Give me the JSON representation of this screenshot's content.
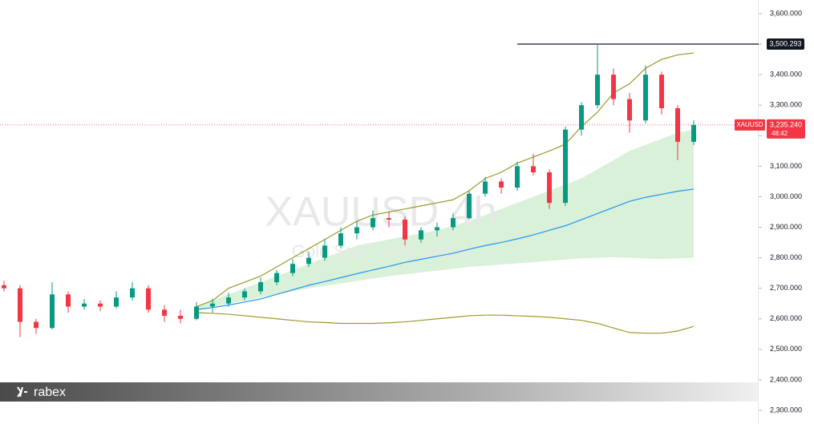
{
  "chart_data": {
    "type": "candlestick",
    "watermark_title": "XAUUSD 4h",
    "watermark_subtitle": "Gold Spot / U.S. Dollar",
    "brand": "rabex",
    "symbol": "XAUUSD",
    "countdown": "48:42",
    "categories": [
      null,
      null,
      null,
      null,
      null,
      null,
      null,
      null,
      null,
      null,
      null,
      null,
      null,
      null,
      null,
      null,
      null,
      null,
      null,
      null,
      null,
      null,
      null,
      null,
      null,
      null,
      null,
      null,
      null,
      null,
      null,
      null,
      null,
      null,
      null,
      null,
      null,
      null,
      null,
      null,
      null,
      null,
      null,
      null
    ],
    "open": [
      2710,
      2700,
      2590,
      2570,
      2680,
      2640,
      2650,
      2640,
      2670,
      2700,
      2630,
      2610,
      2600,
      2640,
      2650,
      2670,
      2690,
      2720,
      2750,
      2780,
      2800,
      2840,
      2880,
      2900,
      2930,
      2925,
      2860,
      2890,
      2900,
      2930,
      3010,
      3050,
      3030,
      3100,
      3080,
      2980,
      3220,
      3300,
      3400,
      3320,
      3250,
      3400,
      3290,
      3180
    ],
    "high": [
      2725,
      2710,
      2600,
      2720,
      2690,
      2665,
      2660,
      2690,
      2720,
      2710,
      2645,
      2630,
      2655,
      2665,
      2685,
      2700,
      2735,
      2760,
      2795,
      2820,
      2860,
      2900,
      2920,
      2955,
      2950,
      2935,
      2900,
      2915,
      2945,
      3020,
      3065,
      3060,
      3115,
      3140,
      3090,
      3230,
      3310,
      3500.293,
      3420,
      3340,
      3430,
      3410,
      3300,
      3250
    ],
    "low": [
      2690,
      2540,
      2550,
      2565,
      2620,
      2630,
      2625,
      2635,
      2660,
      2620,
      2590,
      2585,
      2595,
      2620,
      2640,
      2660,
      2680,
      2710,
      2740,
      2770,
      2790,
      2830,
      2860,
      2890,
      2900,
      2840,
      2850,
      2870,
      2890,
      2925,
      3000,
      3010,
      3020,
      3070,
      2960,
      2970,
      3200,
      3290,
      3300,
      3210,
      3240,
      3270,
      3120,
      3170
    ],
    "close": [
      2700,
      2590,
      2570,
      2680,
      2640,
      2650,
      2640,
      2670,
      2700,
      2630,
      2610,
      2600,
      2640,
      2650,
      2670,
      2690,
      2720,
      2750,
      2780,
      2800,
      2840,
      2880,
      2900,
      2930,
      2925,
      2860,
      2890,
      2900,
      2930,
      3010,
      3050,
      3030,
      3100,
      3080,
      2980,
      3220,
      3300,
      3400,
      3320,
      3250,
      3400,
      3290,
      3180,
      3235.24
    ],
    "up_color": "#089981",
    "down_color": "#f23645",
    "series": [
      {
        "color": "#9a9a2a",
        "values": [
          null,
          null,
          null,
          null,
          null,
          null,
          null,
          null,
          null,
          null,
          null,
          null,
          2640,
          2660,
          2700,
          2720,
          2740,
          2770,
          2800,
          2830,
          2860,
          2890,
          2920,
          2940,
          2950,
          2960,
          2970,
          2980,
          2990,
          3020,
          3060,
          3080,
          3110,
          3130,
          3150,
          3172,
          3230,
          3277,
          3340,
          3370,
          3421,
          3450,
          3465,
          3471
        ]
      },
      {
        "color": "#9a9a2a",
        "values": [
          null,
          null,
          null,
          null,
          null,
          null,
          null,
          null,
          null,
          null,
          null,
          null,
          2620,
          2618,
          2615,
          2610,
          2605,
          2600,
          2595,
          2590,
          2588,
          2585,
          2585,
          2585,
          2587,
          2590,
          2595,
          2600,
          2605,
          2610,
          2612,
          2612,
          2610,
          2608,
          2605,
          2600,
          2595,
          2585,
          2570,
          2555,
          2553,
          2553,
          2560,
          2575
        ]
      },
      {
        "color": "#2196f3",
        "values": [
          null,
          null,
          null,
          null,
          null,
          null,
          null,
          null,
          null,
          null,
          null,
          null,
          2630,
          2637,
          2645,
          2655,
          2665,
          2680,
          2695,
          2710,
          2722,
          2735,
          2748,
          2760,
          2772,
          2785,
          2795,
          2805,
          2815,
          2828,
          2840,
          2850,
          2862,
          2875,
          2890,
          2905,
          2925,
          2945,
          2965,
          2985,
          2998,
          3008,
          3018,
          3025
        ]
      }
    ],
    "band_fill": "#d9f0d9",
    "band_upper": [
      null,
      null,
      null,
      null,
      null,
      null,
      null,
      null,
      null,
      null,
      null,
      null,
      2640,
      2660,
      2680,
      2700,
      2720,
      2740,
      2760,
      2780,
      2800,
      2820,
      2840,
      2850,
      2860,
      2870,
      2880,
      2890,
      2905,
      2920,
      2940,
      2960,
      2980,
      3000,
      3020,
      3040,
      3060,
      3090,
      3120,
      3150,
      3170,
      3190,
      3210,
      3220
    ],
    "band_lower": [
      null,
      null,
      null,
      null,
      null,
      null,
      null,
      null,
      null,
      null,
      null,
      null,
      2630,
      2640,
      2650,
      2660,
      2670,
      2680,
      2690,
      2700,
      2708,
      2716,
      2724,
      2732,
      2740,
      2746,
      2752,
      2758,
      2764,
      2770,
      2774,
      2778,
      2782,
      2786,
      2790,
      2794,
      2798,
      2800,
      2802,
      2800,
      2798,
      2796,
      2798,
      2800
    ],
    "resistance": {
      "value": 3500.293,
      "label": "3,500.293"
    },
    "last_price": {
      "value": 3235.24,
      "label": "3,235.240"
    },
    "ylim": [
      2300,
      3600
    ],
    "yticks": [
      {
        "value": 2300,
        "label": "2,300.000"
      },
      {
        "value": 2400,
        "label": "2,400.000"
      },
      {
        "value": 2500,
        "label": "2,500.000"
      },
      {
        "value": 2600,
        "label": "2,600.000"
      },
      {
        "value": 2700,
        "label": "2,700.000"
      },
      {
        "value": 2800,
        "label": "2,800.000"
      },
      {
        "value": 2900,
        "label": "2,900.000"
      },
      {
        "value": 3000,
        "label": "3,000.000"
      },
      {
        "value": 3100,
        "label": "3,100.000"
      },
      {
        "value": 3200,
        "label": "3,200.000"
      },
      {
        "value": 3300,
        "label": "3,300.000"
      },
      {
        "value": 3400,
        "label": "3,400.000"
      },
      {
        "value": 3500,
        "label": "3,500.000"
      },
      {
        "value": 3600,
        "label": "3,600.000"
      }
    ]
  }
}
